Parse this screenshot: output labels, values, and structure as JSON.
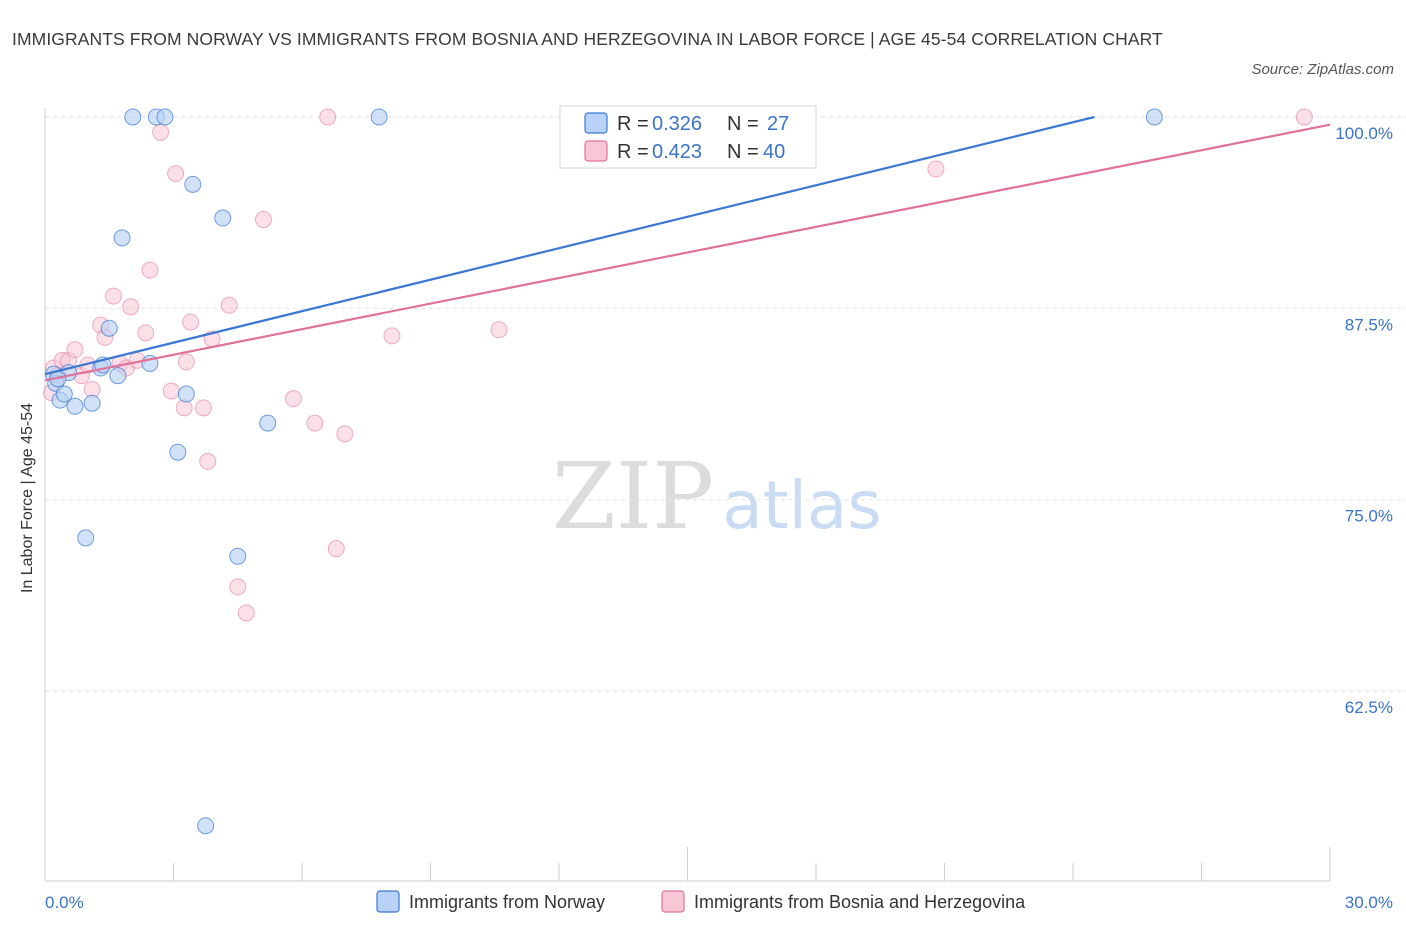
{
  "title": "IMMIGRANTS FROM NORWAY VS IMMIGRANTS FROM BOSNIA AND HERZEGOVINA IN LABOR FORCE | AGE 45-54 CORRELATION CHART",
  "source": "Source: ZipAtlas.com",
  "watermark": {
    "zip": "ZIP",
    "atlas": "atlas"
  },
  "colors": {
    "norway": "#3a78d4",
    "norway_fill": "#b8d2f5",
    "bosnia": "#e0719a",
    "bosnia_fill": "#f7c7d6",
    "tick": "#3a73c8"
  },
  "legend_top": [
    {
      "r_label": "R = ",
      "r_value": "0.326",
      "n_label": "N = ",
      "n_value": "27"
    },
    {
      "r_label": "R = ",
      "r_value": "0.423",
      "n_label": "N = ",
      "n_value": "40"
    }
  ],
  "chart_data": {
    "type": "scatter",
    "xlabel": "",
    "ylabel": "In Labor Force | Age 45-54",
    "xlim": [
      0,
      30
    ],
    "ylim": [
      50,
      100
    ],
    "x_tick_labels": [
      "0.0%",
      "30.0%"
    ],
    "y_ticks": [
      62.5,
      75.0,
      87.5,
      100.0
    ],
    "y_tick_labels": [
      "62.5%",
      "75.0%",
      "87.5%",
      "100.0%"
    ],
    "grid": true,
    "legend_position": "bottom-center",
    "series": [
      {
        "name": "Immigrants from Norway",
        "R": 0.326,
        "N": 27,
        "trend": {
          "x0": 0.0,
          "y0": 83.2,
          "x1": 24.5,
          "y1": 100.0
        },
        "points": [
          [
            0.2,
            83.2
          ],
          [
            0.25,
            82.6
          ],
          [
            0.35,
            81.5
          ],
          [
            0.45,
            81.9
          ],
          [
            0.7,
            81.1
          ],
          [
            0.95,
            72.5
          ],
          [
            1.1,
            81.3
          ],
          [
            1.3,
            83.6
          ],
          [
            1.5,
            86.2
          ],
          [
            1.7,
            83.1
          ],
          [
            1.8,
            92.1
          ],
          [
            2.05,
            100.0
          ],
          [
            2.45,
            83.9
          ],
          [
            2.6,
            100.0
          ],
          [
            2.8,
            100.0
          ],
          [
            3.1,
            78.1
          ],
          [
            3.3,
            81.9
          ],
          [
            3.45,
            95.6
          ],
          [
            3.75,
            53.7
          ],
          [
            4.15,
            93.4
          ],
          [
            4.5,
            71.3
          ],
          [
            5.2,
            80.0
          ],
          [
            7.8,
            100.0
          ],
          [
            0.55,
            83.3
          ],
          [
            1.35,
            83.8
          ],
          [
            0.3,
            82.9
          ],
          [
            25.9,
            100.0
          ]
        ]
      },
      {
        "name": "Immigrants from Bosnia and Herzegovina",
        "R": 0.423,
        "N": 40,
        "trend": {
          "x0": 0.0,
          "y0": 82.8,
          "x1": 30.0,
          "y1": 99.5
        },
        "points": [
          [
            0.15,
            82.0
          ],
          [
            0.2,
            83.6
          ],
          [
            0.3,
            83.1
          ],
          [
            0.4,
            84.1
          ],
          [
            0.55,
            84.1
          ],
          [
            0.7,
            84.8
          ],
          [
            0.85,
            83.1
          ],
          [
            1.0,
            83.8
          ],
          [
            1.1,
            82.2
          ],
          [
            1.3,
            86.4
          ],
          [
            1.4,
            85.6
          ],
          [
            1.6,
            88.3
          ],
          [
            1.75,
            83.9
          ],
          [
            1.9,
            83.6
          ],
          [
            2.0,
            87.6
          ],
          [
            2.15,
            84.1
          ],
          [
            2.35,
            85.9
          ],
          [
            2.45,
            90.0
          ],
          [
            2.7,
            99.0
          ],
          [
            2.95,
            82.1
          ],
          [
            3.05,
            96.3
          ],
          [
            3.25,
            81.0
          ],
          [
            3.3,
            84.0
          ],
          [
            3.4,
            86.6
          ],
          [
            3.7,
            81.0
          ],
          [
            3.8,
            77.5
          ],
          [
            3.9,
            85.5
          ],
          [
            4.3,
            87.7
          ],
          [
            4.5,
            69.3
          ],
          [
            4.7,
            67.6
          ],
          [
            5.1,
            93.3
          ],
          [
            5.8,
            81.6
          ],
          [
            6.3,
            80.0
          ],
          [
            6.6,
            100.0
          ],
          [
            6.8,
            71.8
          ],
          [
            7.0,
            79.3
          ],
          [
            8.1,
            85.7
          ],
          [
            10.6,
            86.1
          ],
          [
            20.8,
            96.6
          ],
          [
            29.4,
            100.0
          ]
        ]
      }
    ]
  }
}
